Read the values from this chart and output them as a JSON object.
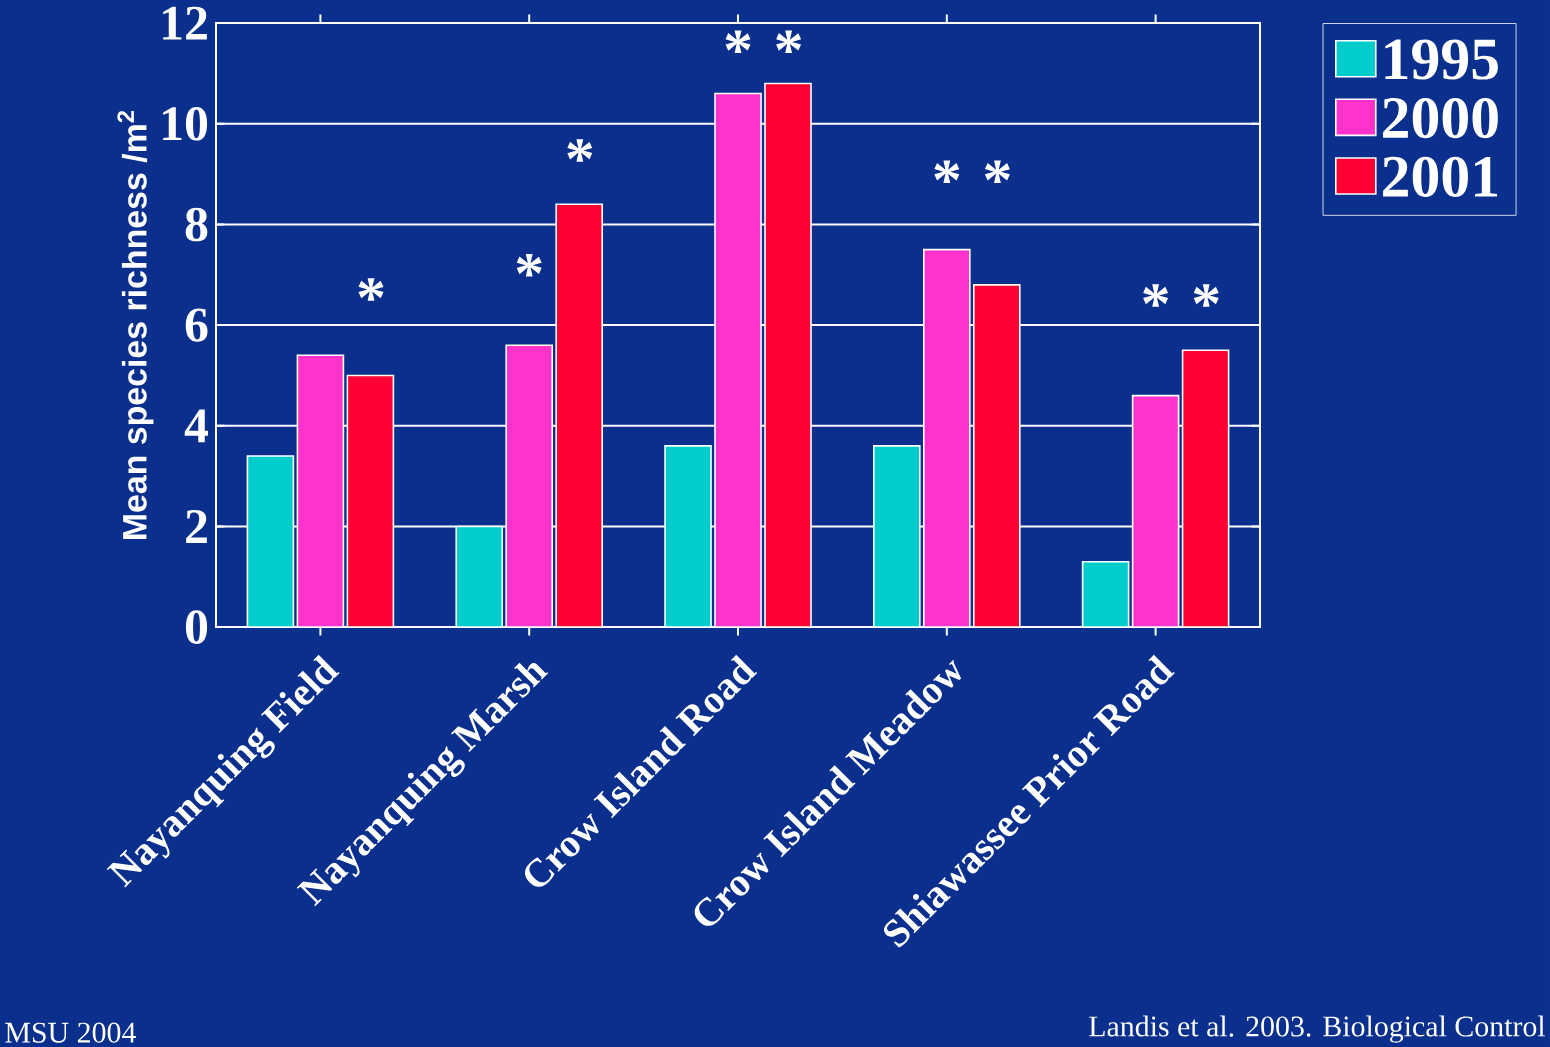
{
  "chart_data": {
    "type": "bar",
    "ylabel": "Mean species richness /m$^{2}$",
    "categories": [
      "Nayanquing Field",
      "Nayanquing Marsh",
      "Crow Island Road",
      "Crow Island Meadow",
      "Shiawassee Prior Road"
    ],
    "series": [
      {
        "name": "1995",
        "color": "#00cccc",
        "values": [
          3.4,
          2.0,
          3.6,
          3.6,
          1.3
        ]
      },
      {
        "name": "2000",
        "color": "#ff33cc",
        "values": [
          5.4,
          5.6,
          10.6,
          7.5,
          4.6
        ]
      },
      {
        "name": "2001",
        "color": "#ff0033",
        "values": [
          5.0,
          8.4,
          10.8,
          6.8,
          5.5
        ]
      }
    ],
    "ylim": [
      0,
      12
    ],
    "yticks": [
      0,
      2,
      4,
      6,
      8,
      10,
      12
    ],
    "grid": "y",
    "legend": "top right",
    "annotations": [
      "*",
      "*",
      "*",
      "*",
      "*",
      "*",
      "*",
      "*",
      "*",
      "MSU 2004",
      "Landis et al. 2003. Biological Control"
    ]
  }
}
